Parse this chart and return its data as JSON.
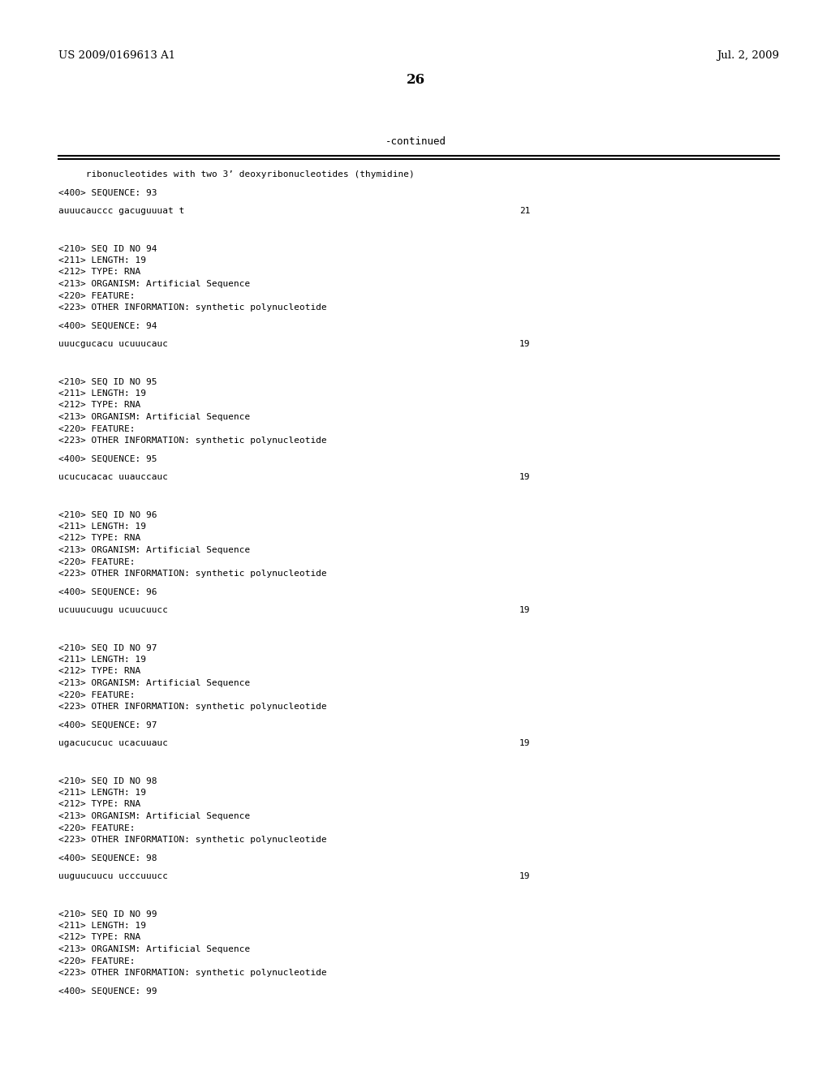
{
  "bg_color": "#ffffff",
  "header_left": "US 2009/0169613 A1",
  "header_right": "Jul. 2, 2009",
  "page_number": "26",
  "continued_label": "-continued",
  "intro_text": "     ribonucleotides with two 3’ deoxyribonucleotides (thymidine)",
  "blocks": [
    {
      "meta": [],
      "tag_line": "<400> SEQUENCE: 93",
      "sequence": "auuucauccc gacuguuuat t",
      "seq_num": "21"
    },
    {
      "meta": [
        "<210> SEQ ID NO 94",
        "<211> LENGTH: 19",
        "<212> TYPE: RNA",
        "<213> ORGANISM: Artificial Sequence",
        "<220> FEATURE:",
        "<223> OTHER INFORMATION: synthetic polynucleotide"
      ],
      "tag_line": "<400> SEQUENCE: 94",
      "sequence": "uuucgucacu ucuuucauc",
      "seq_num": "19"
    },
    {
      "meta": [
        "<210> SEQ ID NO 95",
        "<211> LENGTH: 19",
        "<212> TYPE: RNA",
        "<213> ORGANISM: Artificial Sequence",
        "<220> FEATURE:",
        "<223> OTHER INFORMATION: synthetic polynucleotide"
      ],
      "tag_line": "<400> SEQUENCE: 95",
      "sequence": "ucucucacac uuauccauc",
      "seq_num": "19"
    },
    {
      "meta": [
        "<210> SEQ ID NO 96",
        "<211> LENGTH: 19",
        "<212> TYPE: RNA",
        "<213> ORGANISM: Artificial Sequence",
        "<220> FEATURE:",
        "<223> OTHER INFORMATION: synthetic polynucleotide"
      ],
      "tag_line": "<400> SEQUENCE: 96",
      "sequence": "ucuuucuugu ucuucuucc",
      "seq_num": "19"
    },
    {
      "meta": [
        "<210> SEQ ID NO 97",
        "<211> LENGTH: 19",
        "<212> TYPE: RNA",
        "<213> ORGANISM: Artificial Sequence",
        "<220> FEATURE:",
        "<223> OTHER INFORMATION: synthetic polynucleotide"
      ],
      "tag_line": "<400> SEQUENCE: 97",
      "sequence": "ugacucucuc ucacuuauc",
      "seq_num": "19"
    },
    {
      "meta": [
        "<210> SEQ ID NO 98",
        "<211> LENGTH: 19",
        "<212> TYPE: RNA",
        "<213> ORGANISM: Artificial Sequence",
        "<220> FEATURE:",
        "<223> OTHER INFORMATION: synthetic polynucleotide"
      ],
      "tag_line": "<400> SEQUENCE: 98",
      "sequence": "uuguucuucu ucccuuucc",
      "seq_num": "19"
    },
    {
      "meta": [
        "<210> SEQ ID NO 99",
        "<211> LENGTH: 19",
        "<212> TYPE: RNA",
        "<213> ORGANISM: Artificial Sequence",
        "<220> FEATURE:",
        "<223> OTHER INFORMATION: synthetic polynucleotide"
      ],
      "tag_line": "<400> SEQUENCE: 99",
      "sequence": "",
      "seq_num": ""
    }
  ],
  "mono_fontsize": 8.0,
  "header_fontsize": 9.5,
  "page_num_fontsize": 12
}
